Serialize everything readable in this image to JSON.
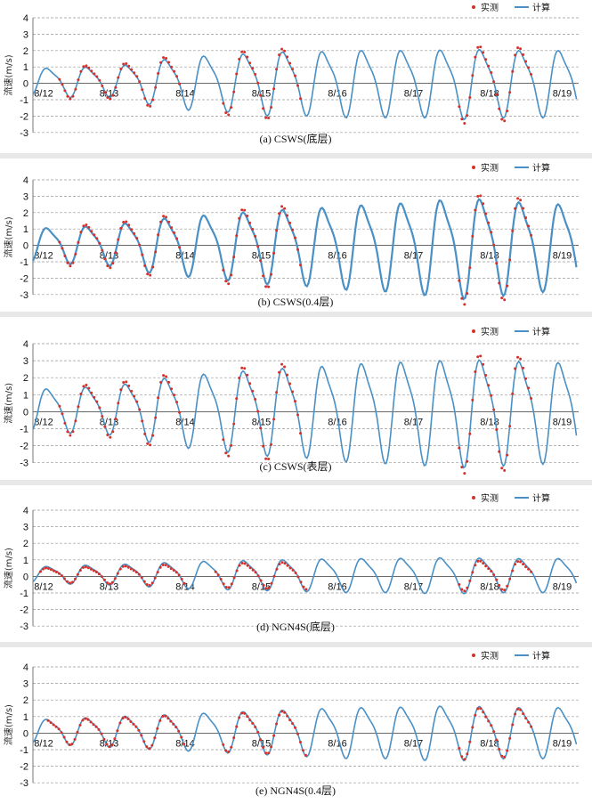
{
  "colors": {
    "observed": "#d6302a",
    "computed": "#4a90c4",
    "grid": "#999999",
    "axis": "#555555"
  },
  "legend": {
    "observed_label": "实测",
    "computed_label": "计算"
  },
  "y_axis_label": "流速(m/s)",
  "chart_data": [
    {
      "type": "line",
      "caption": "(a) CSWS(底层)",
      "ylabel": "流速(m/s)",
      "ylim": [
        -3,
        4
      ],
      "yticks": [
        "4",
        "3",
        "2",
        "1",
        "0",
        "-1",
        "-2",
        "-3"
      ],
      "x_tick_labels": [
        "8/12",
        "8/13",
        "8/14",
        "8/15",
        "8/16",
        "8/17",
        "8/18",
        "8/19"
      ],
      "grid": "dashed horizontal",
      "legend_position": "top-right",
      "series": [
        {
          "name": "计算",
          "style": "line",
          "cycle_amplitudes": [
            0.8,
            0.9,
            0.9,
            1.3,
            1.6,
            1.7,
            1.9,
            1.9,
            2.0,
            2.0,
            2.0,
            2.1,
            2.0,
            2.0
          ],
          "offset": 0.15
        },
        {
          "name": "实测",
          "style": "points",
          "segments_days": [
            [
              0.35,
              1.95
            ],
            [
              2.5,
              3.55
            ],
            [
              5.6,
              6.55
            ]
          ],
          "amplitude_scale": 1.1
        }
      ]
    },
    {
      "type": "line",
      "caption": "(b) CSWS(0.4层)",
      "ylabel": "流速(m/s)",
      "ylim": [
        -3,
        4
      ],
      "yticks": [
        "4",
        "3",
        "2",
        "1",
        "0",
        "-1",
        "-2",
        "-3"
      ],
      "x_tick_labels": [
        "8/12",
        "8/13",
        "8/14",
        "8/15",
        "8/16",
        "8/17",
        "8/18",
        "8/19"
      ],
      "grid": "dashed horizontal",
      "legend_position": "top-right",
      "series": [
        {
          "name": "计算",
          "style": "line",
          "cycle_amplitudes": [
            1.0,
            1.1,
            1.2,
            1.6,
            1.8,
            2.0,
            2.2,
            2.3,
            2.5,
            2.6,
            2.8,
            3.0,
            2.8,
            2.6
          ],
          "offset": 0.1
        },
        {
          "name": "实测",
          "style": "points",
          "segments_days": [
            [
              0.35,
              1.95
            ],
            [
              2.5,
              3.55
            ],
            [
              5.6,
              6.55
            ]
          ],
          "amplitude_scale": 1.1
        }
      ]
    },
    {
      "type": "line",
      "caption": "(c) CSWS(表层)",
      "ylabel": "流速(m/s)",
      "ylim": [
        -3,
        4
      ],
      "yticks": [
        "4",
        "3",
        "2",
        "1",
        "0",
        "-1",
        "-2",
        "-3"
      ],
      "x_tick_labels": [
        "8/12",
        "8/13",
        "8/14",
        "8/15",
        "8/16",
        "8/17",
        "8/18",
        "8/19"
      ],
      "grid": "dashed horizontal",
      "legend_position": "top-right",
      "series": [
        {
          "name": "计算",
          "style": "line",
          "cycle_amplitudes": [
            1.2,
            1.3,
            1.4,
            1.8,
            2.1,
            2.3,
            2.5,
            2.6,
            2.8,
            2.9,
            3.0,
            3.1,
            3.0,
            2.9
          ],
          "offset": 0.2
        },
        {
          "name": "实测",
          "style": "points",
          "segments_days": [
            [
              0.35,
              1.95
            ],
            [
              2.5,
              3.55
            ],
            [
              5.6,
              6.55
            ]
          ],
          "amplitude_scale": 1.1
        }
      ]
    },
    {
      "type": "line",
      "caption": "(d) NGN4S(底层)",
      "ylabel": "流速(m/s)",
      "ylim": [
        -3,
        4
      ],
      "yticks": [
        "4",
        "3",
        "2",
        "1",
        "0",
        "-1",
        "-2",
        "-3"
      ],
      "x_tick_labels": [
        "8/12",
        "8/13",
        "8/14",
        "8/15",
        "8/16",
        "8/17",
        "8/18",
        "8/19"
      ],
      "grid": "dashed horizontal",
      "legend_position": "top-right",
      "series": [
        {
          "name": "计算",
          "style": "line",
          "cycle_amplitudes": [
            0.45,
            0.55,
            0.6,
            0.7,
            0.8,
            0.85,
            0.9,
            0.95,
            1.0,
            1.0,
            1.05,
            1.05,
            1.0,
            1.0
          ],
          "offset": 0.15
        },
        {
          "name": "实测",
          "style": "points",
          "segments_days": [
            [
              0.1,
              2.0
            ],
            [
              2.4,
              3.6
            ],
            [
              5.6,
              6.55
            ]
          ],
          "amplitude_scale": 0.85
        }
      ]
    },
    {
      "type": "line",
      "caption": "(e) NGN4S(0.4层)",
      "ylabel": "流速(m/s)",
      "ylim": [
        -3,
        4
      ],
      "yticks": [
        "4",
        "3",
        "2",
        "1",
        "0",
        "-1",
        "-2",
        "-3"
      ],
      "x_tick_labels": [
        "8/12",
        "8/13",
        "8/14",
        "8/15",
        "8/16",
        "8/17",
        "8/18",
        "8/19"
      ],
      "grid": "dashed horizontal",
      "legend_position": "top-right",
      "series": [
        {
          "name": "计算",
          "style": "line",
          "cycle_amplitudes": [
            0.7,
            0.8,
            0.9,
            1.0,
            1.1,
            1.2,
            1.3,
            1.4,
            1.5,
            1.5,
            1.6,
            1.6,
            1.5,
            1.5
          ],
          "offset": 0.15
        },
        {
          "name": "实测",
          "style": "points",
          "segments_days": [
            [
              0.2,
              2.0
            ],
            [
              2.5,
              3.6
            ],
            [
              5.6,
              6.55
            ]
          ],
          "amplitude_scale": 0.95
        }
      ]
    }
  ]
}
